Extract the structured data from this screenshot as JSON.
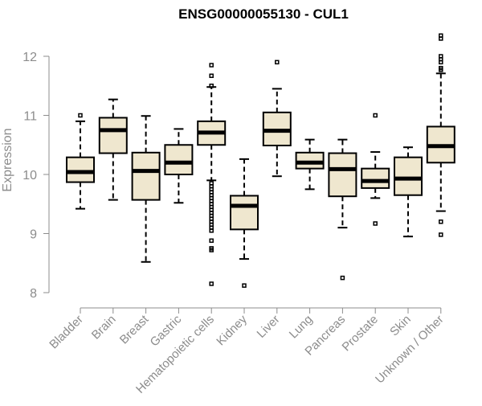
{
  "chart_data": {
    "type": "boxplot",
    "title": "ENSG00000055130 - CUL1",
    "ylabel": "Expression",
    "xlabel": "",
    "ylim": [
      8,
      12.4
    ],
    "yticks": [
      8,
      9,
      10,
      11,
      12
    ],
    "grid": false,
    "legend": "none",
    "box_color": "#efe7cf",
    "categories": [
      "Bladder",
      "Brain",
      "Breast",
      "Gastric",
      "Hematopoietic cells",
      "Kidney",
      "Liver",
      "Lung",
      "Pancreas",
      "Prostate",
      "Skin",
      "Unknown / Other"
    ],
    "boxes": [
      {
        "whisker_low": 9.42,
        "q1": 9.87,
        "median": 10.04,
        "q3": 10.29,
        "whisker_high": 10.9,
        "outliers": [
          11.0
        ]
      },
      {
        "whisker_low": 9.57,
        "q1": 10.36,
        "median": 10.75,
        "q3": 10.96,
        "whisker_high": 11.27,
        "outliers": []
      },
      {
        "whisker_low": 8.52,
        "q1": 9.57,
        "median": 10.06,
        "q3": 10.37,
        "whisker_high": 10.99,
        "outliers": []
      },
      {
        "whisker_low": 9.52,
        "q1": 10.0,
        "median": 10.2,
        "q3": 10.5,
        "whisker_high": 10.77,
        "outliers": []
      },
      {
        "whisker_low": 9.9,
        "q1": 10.5,
        "median": 10.71,
        "q3": 10.9,
        "whisker_high": 11.48,
        "outliers": [
          11.85,
          11.67,
          11.5,
          9.85,
          9.8,
          9.75,
          9.7,
          9.65,
          9.6,
          9.55,
          9.5,
          9.45,
          9.4,
          9.35,
          9.3,
          9.25,
          9.2,
          9.15,
          9.1,
          9.05,
          8.88,
          8.75,
          8.72,
          8.15
        ]
      },
      {
        "whisker_low": 8.57,
        "q1": 9.07,
        "median": 9.47,
        "q3": 9.64,
        "whisker_high": 10.26,
        "outliers": [
          8.12
        ]
      },
      {
        "whisker_low": 9.97,
        "q1": 10.49,
        "median": 10.74,
        "q3": 11.05,
        "whisker_high": 11.45,
        "outliers": [
          11.9
        ]
      },
      {
        "whisker_low": 9.75,
        "q1": 10.1,
        "median": 10.2,
        "q3": 10.37,
        "whisker_high": 10.59,
        "outliers": []
      },
      {
        "whisker_low": 9.1,
        "q1": 9.63,
        "median": 10.09,
        "q3": 10.36,
        "whisker_high": 10.59,
        "outliers": [
          8.25
        ]
      },
      {
        "whisker_low": 9.6,
        "q1": 9.77,
        "median": 9.89,
        "q3": 10.1,
        "whisker_high": 10.38,
        "outliers": [
          11.0,
          9.17
        ]
      },
      {
        "whisker_low": 8.95,
        "q1": 9.65,
        "median": 9.93,
        "q3": 10.29,
        "whisker_high": 10.46,
        "outliers": []
      },
      {
        "whisker_low": 9.38,
        "q1": 10.2,
        "median": 10.48,
        "q3": 10.81,
        "whisker_high": 11.71,
        "outliers": [
          12.35,
          12.3,
          12.0,
          11.95,
          11.9,
          11.8,
          11.77,
          9.2,
          8.98
        ]
      }
    ]
  }
}
